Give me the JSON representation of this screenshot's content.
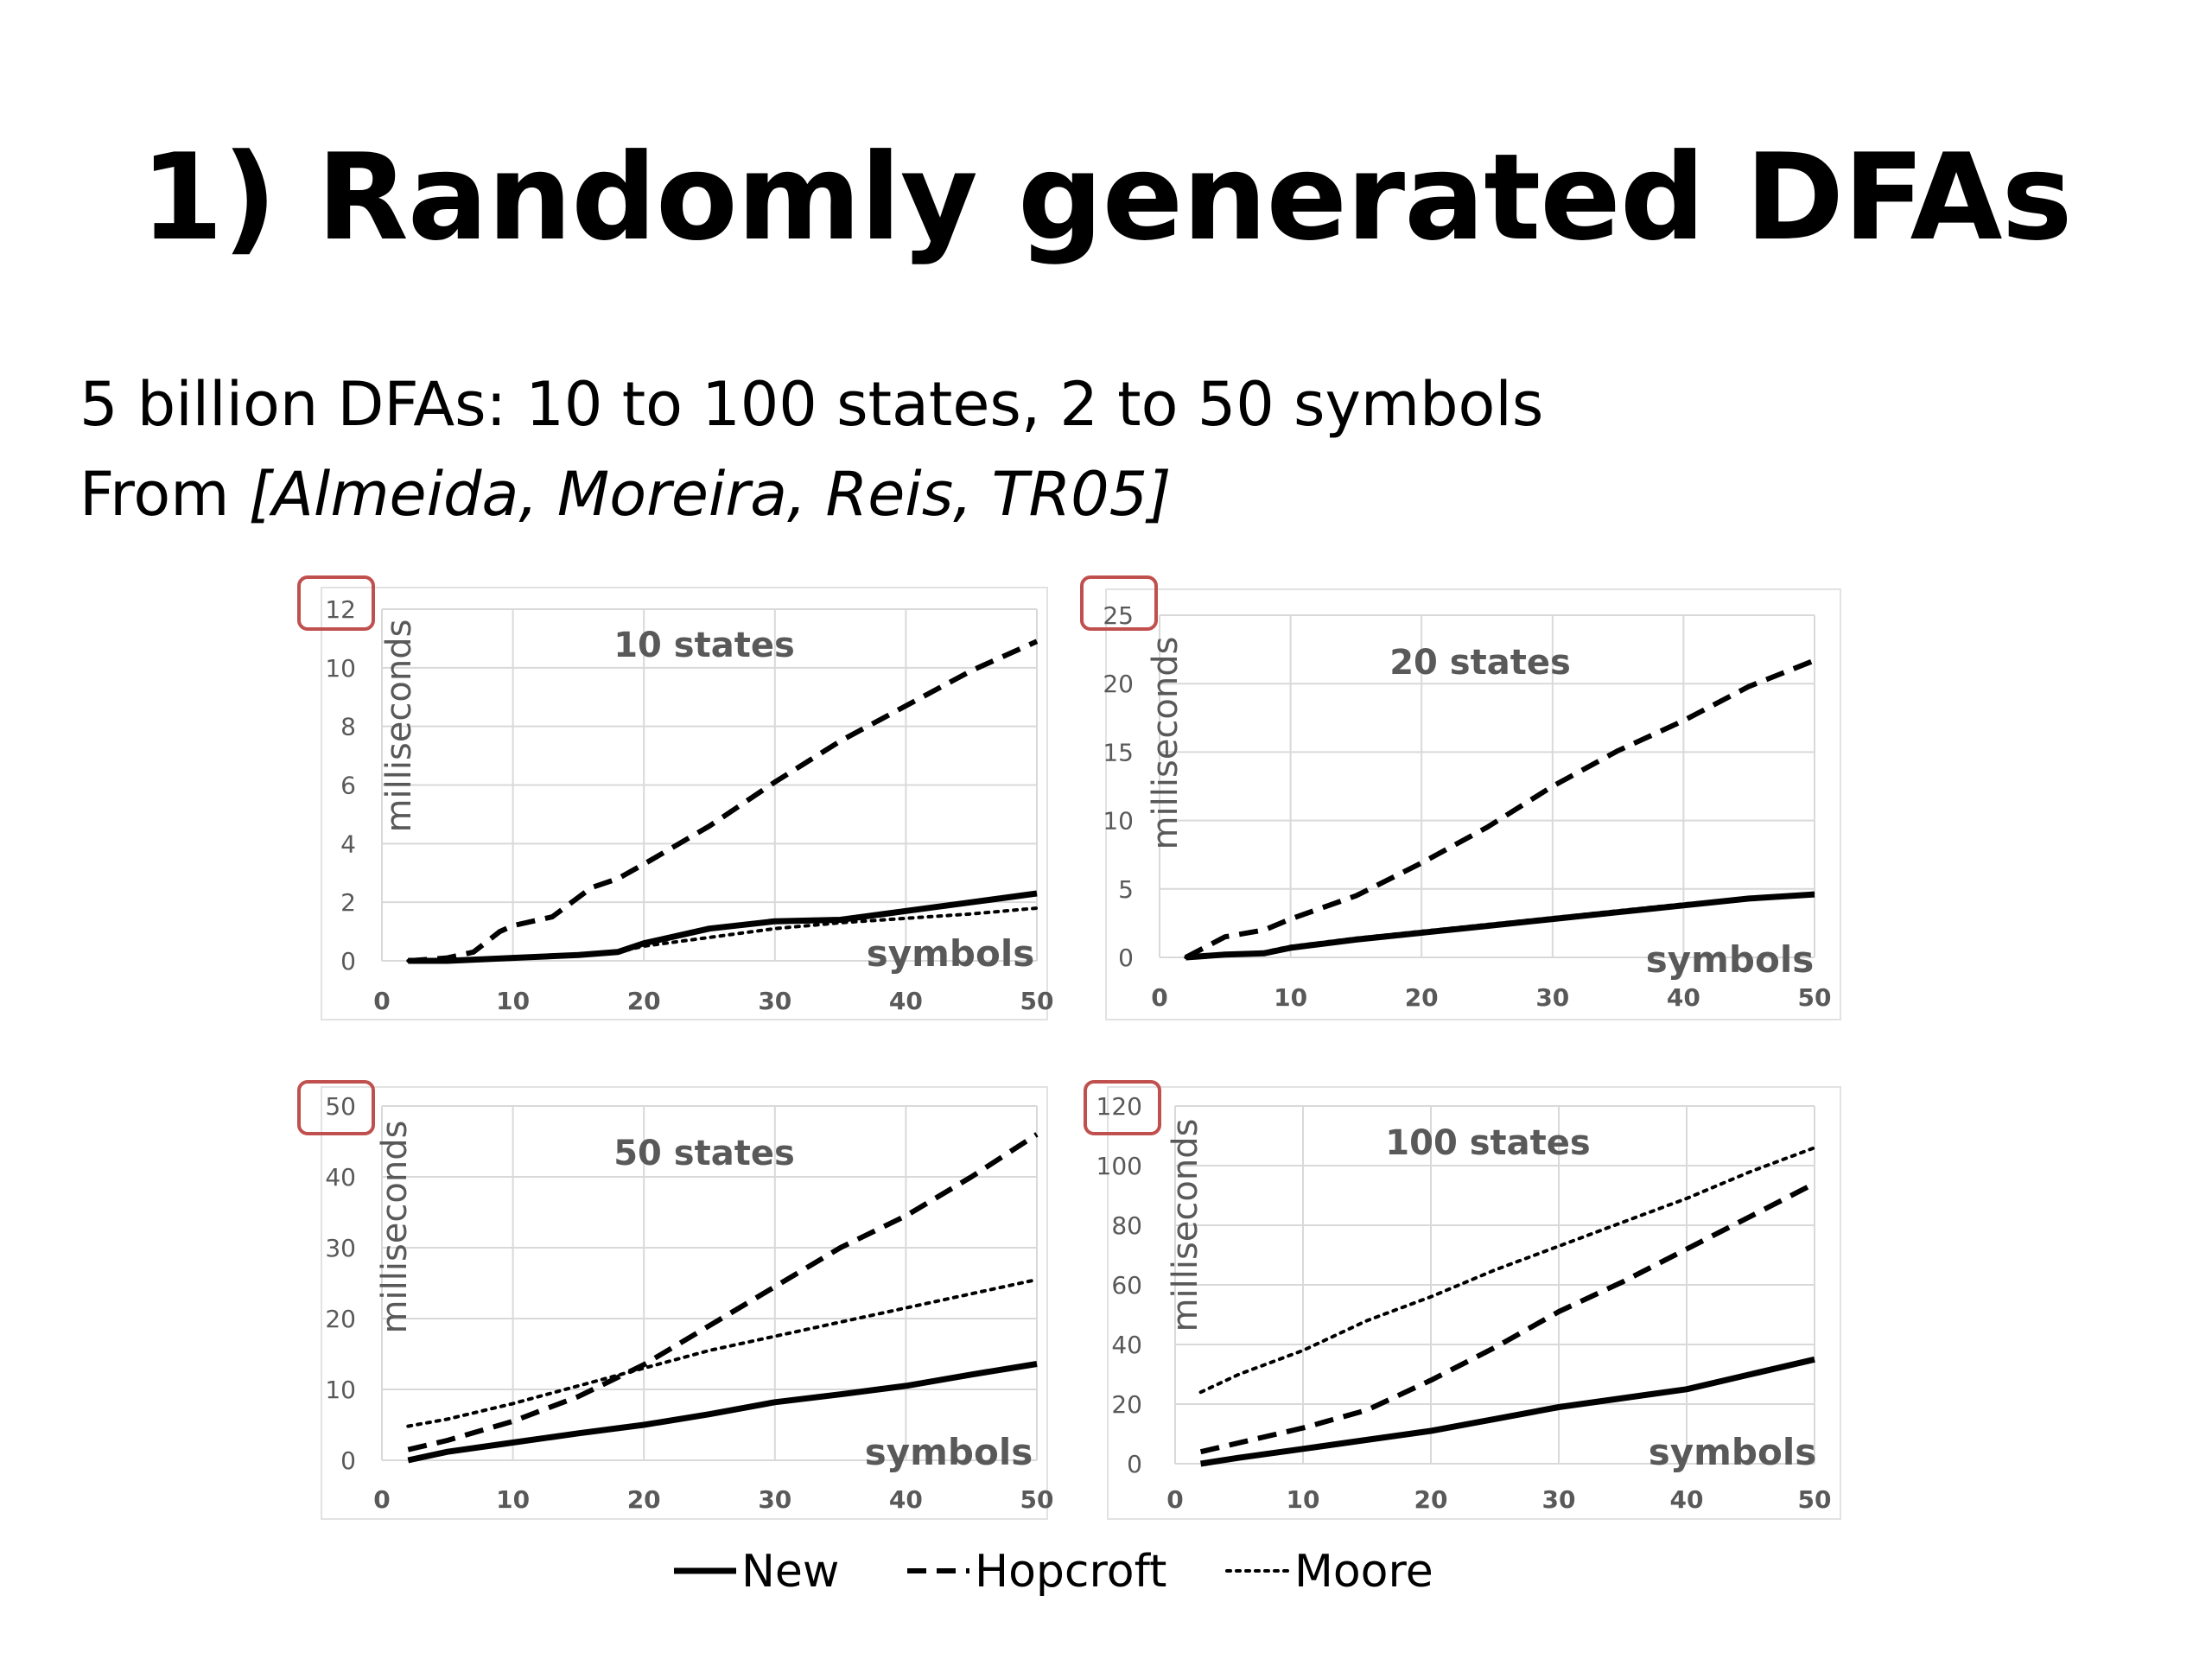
{
  "slide": {
    "title": "1) Randomly generated DFAs",
    "subtitle_line1": "5 billion DFAs: 10 to 100 states, 2 to 50 symbols",
    "subtitle_line2_prefix": "From ",
    "subtitle_line2_ref": "[Almeida, Moreira, Reis, TR05]"
  },
  "colors": {
    "line": "#000000",
    "grid": "#d9d9d9",
    "label": "#595959",
    "highlight": "#c0504d"
  },
  "legend": [
    "New",
    "Hopcroft",
    "Moore"
  ],
  "chart_data": [
    {
      "type": "line",
      "title": "10 states",
      "xlabel": "symbols",
      "ylabel": "milliseconds",
      "xlim": [
        0,
        50
      ],
      "ylim": [
        0,
        12
      ],
      "xticks": [
        0,
        10,
        20,
        30,
        40,
        50
      ],
      "yticks": [
        0,
        2,
        4,
        6,
        8,
        10,
        12
      ],
      "highlighted_tick": 12,
      "grid": true,
      "series": [
        {
          "name": "New",
          "style": "solid",
          "x": [
            2,
            5,
            10,
            15,
            18,
            20,
            25,
            30,
            35,
            40,
            45,
            50
          ],
          "y": [
            0,
            0,
            0.1,
            0.2,
            0.3,
            0.6,
            1.1,
            1.35,
            1.4,
            1.7,
            2.0,
            2.3
          ]
        },
        {
          "name": "Hopcroft",
          "style": "dashed",
          "x": [
            2,
            5,
            7,
            9,
            10,
            13,
            16,
            18,
            20,
            25,
            30,
            35,
            40,
            45,
            50
          ],
          "y": [
            0,
            0.1,
            0.3,
            1.0,
            1.2,
            1.5,
            2.5,
            2.8,
            3.3,
            4.6,
            6.1,
            7.5,
            8.7,
            9.9,
            10.9
          ]
        },
        {
          "name": "Moore",
          "style": "dotted",
          "x": [
            2,
            10,
            18,
            20,
            25,
            30,
            35,
            40,
            45,
            50
          ],
          "y": [
            0,
            0.1,
            0.3,
            0.5,
            0.8,
            1.1,
            1.3,
            1.45,
            1.6,
            1.8
          ]
        }
      ]
    },
    {
      "type": "line",
      "title": "20 states",
      "xlabel": "symbols",
      "ylabel": "milliseconds",
      "xlim": [
        0,
        50
      ],
      "ylim": [
        0,
        25
      ],
      "xticks": [
        0,
        10,
        20,
        30,
        40,
        50
      ],
      "yticks": [
        0,
        5,
        10,
        15,
        20,
        25
      ],
      "highlighted_tick": 25,
      "grid": true,
      "series": [
        {
          "name": "New",
          "style": "solid",
          "x": [
            2,
            5,
            8,
            10,
            15,
            20,
            25,
            30,
            35,
            40,
            45,
            50
          ],
          "y": [
            0,
            0.2,
            0.3,
            0.7,
            1.3,
            1.8,
            2.3,
            2.8,
            3.3,
            3.8,
            4.3,
            4.6
          ]
        },
        {
          "name": "Hopcroft",
          "style": "dashed",
          "x": [
            2,
            5,
            8,
            10,
            15,
            20,
            25,
            30,
            35,
            40,
            45,
            50
          ],
          "y": [
            0,
            1.5,
            2.0,
            2.8,
            4.5,
            6.9,
            9.5,
            12.5,
            15.1,
            17.3,
            19.8,
            21.7
          ]
        },
        {
          "name": "Moore",
          "style": "dotted",
          "x": [
            2,
            5,
            8,
            10,
            15,
            20,
            25,
            30,
            35,
            40,
            45,
            50
          ],
          "y": [
            0,
            0.2,
            0.4,
            0.8,
            1.4,
            1.9,
            2.4,
            2.9,
            3.4,
            3.9,
            4.3,
            4.7
          ]
        }
      ]
    },
    {
      "type": "line",
      "title": "50 states",
      "xlabel": "symbols",
      "ylabel": "milliseconds",
      "xlim": [
        0,
        50
      ],
      "ylim": [
        0,
        50
      ],
      "xticks": [
        0,
        10,
        20,
        30,
        40,
        50
      ],
      "yticks": [
        0,
        10,
        20,
        30,
        40,
        50
      ],
      "highlighted_tick": 50,
      "grid": true,
      "series": [
        {
          "name": "New",
          "style": "solid",
          "x": [
            2,
            5,
            10,
            15,
            20,
            25,
            30,
            35,
            40,
            45,
            50
          ],
          "y": [
            0,
            1.2,
            2.5,
            3.8,
            5.0,
            6.5,
            8.2,
            9.3,
            10.5,
            12.1,
            13.6
          ]
        },
        {
          "name": "Hopcroft",
          "style": "dashed",
          "x": [
            2,
            5,
            10,
            15,
            20,
            25,
            30,
            35,
            40,
            45,
            50
          ],
          "y": [
            1.5,
            2.8,
            5.5,
            9.0,
            13.5,
            19.0,
            24.5,
            30.0,
            34.5,
            40.0,
            46.0
          ]
        },
        {
          "name": "Moore",
          "style": "dotted",
          "x": [
            2,
            5,
            10,
            15,
            20,
            25,
            30,
            35,
            40,
            45,
            50
          ],
          "y": [
            4.8,
            5.8,
            8.0,
            10.5,
            13.0,
            15.5,
            17.5,
            19.5,
            21.5,
            23.5,
            25.5
          ]
        }
      ]
    },
    {
      "type": "line",
      "title": "100 states",
      "xlabel": "symbols",
      "ylabel": "milliseconds",
      "xlim": [
        0,
        50
      ],
      "ylim": [
        0,
        120
      ],
      "xticks": [
        0,
        10,
        20,
        30,
        40,
        50
      ],
      "yticks": [
        0,
        20,
        40,
        60,
        80,
        100,
        120
      ],
      "highlighted_tick": 120,
      "grid": true,
      "series": [
        {
          "name": "New",
          "style": "solid",
          "x": [
            2,
            5,
            10,
            15,
            20,
            25,
            30,
            35,
            40,
            45,
            50
          ],
          "y": [
            0,
            2,
            5,
            8,
            11,
            15,
            19,
            22,
            25,
            30,
            35
          ]
        },
        {
          "name": "Hopcroft",
          "style": "dashed",
          "x": [
            2,
            5,
            10,
            15,
            20,
            25,
            30,
            35,
            40,
            45,
            50
          ],
          "y": [
            4,
            7,
            12,
            18,
            28,
            39,
            51,
            61,
            72,
            83,
            94
          ]
        },
        {
          "name": "Moore",
          "style": "dotted",
          "x": [
            2,
            5,
            10,
            15,
            20,
            25,
            30,
            35,
            40,
            45,
            50
          ],
          "y": [
            24,
            30,
            38,
            48,
            56,
            65,
            73,
            81,
            89,
            98,
            106
          ]
        }
      ]
    }
  ]
}
